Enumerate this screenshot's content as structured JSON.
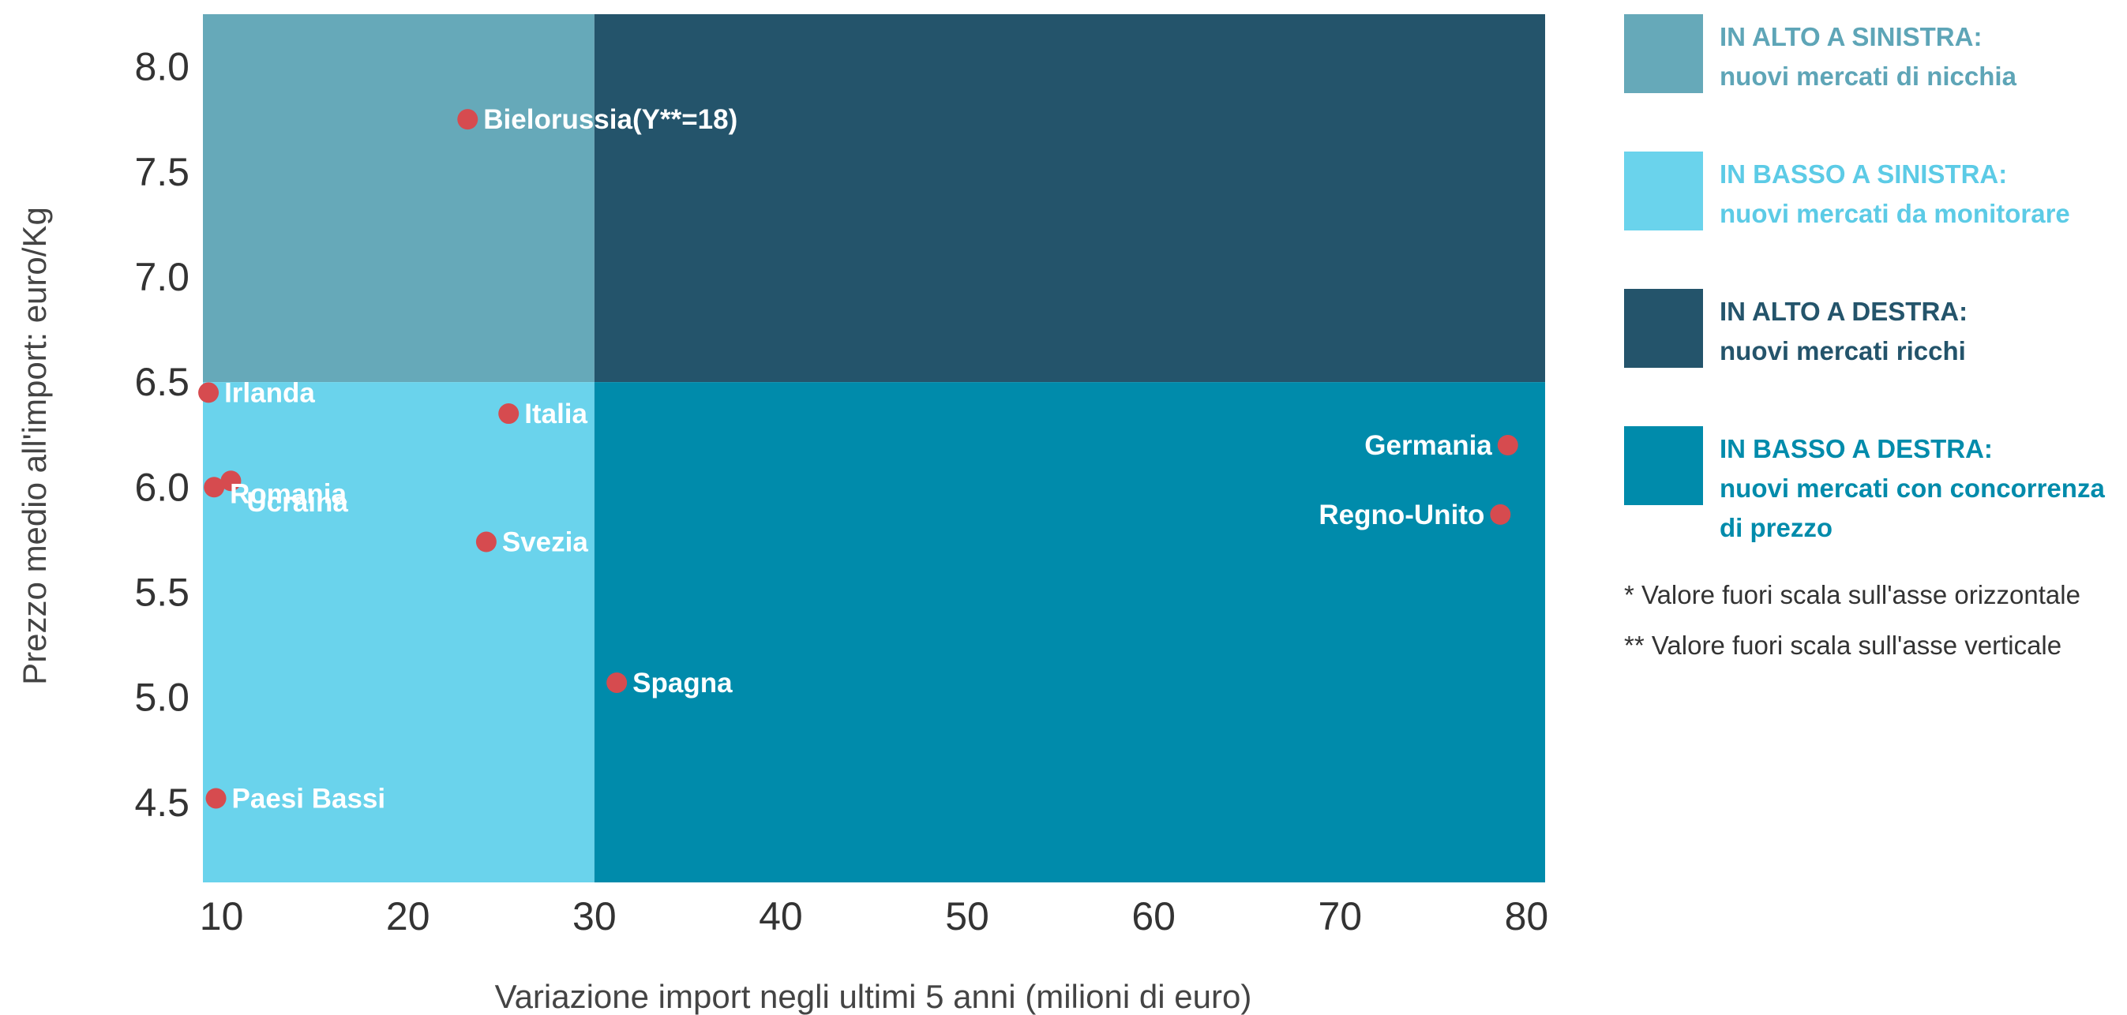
{
  "chart_data": {
    "type": "scatter",
    "title": "",
    "xlabel": "Variazione import negli ultimi 5 anni (milioni di euro)",
    "ylabel": "Prezzo medio all'import: euro/Kg",
    "xlim": [
      9,
      81
    ],
    "ylim": [
      4.12,
      8.25
    ],
    "x_ticks": [
      "10",
      "20",
      "30",
      "40",
      "50",
      "60",
      "70",
      "80"
    ],
    "x_tick_values": [
      10,
      20,
      30,
      40,
      50,
      60,
      70,
      80
    ],
    "y_ticks": [
      "8.0",
      "7.5",
      "7.0",
      "6.5",
      "6.0",
      "5.5",
      "5.0",
      "4.5"
    ],
    "y_tick_values": [
      8.0,
      7.5,
      7.0,
      6.5,
      6.0,
      5.5,
      5.0,
      4.5
    ],
    "x_divider": 30,
    "y_divider": 6.5,
    "grid": false,
    "legend_position": "right",
    "quadrants": [
      {
        "id": "top-left",
        "x_range": [
          9,
          30
        ],
        "y_range": [
          6.5,
          8.25
        ],
        "color": "#66a9b9"
      },
      {
        "id": "top-right",
        "x_range": [
          30,
          81
        ],
        "y_range": [
          6.5,
          8.25
        ],
        "color": "#24546b"
      },
      {
        "id": "bottom-left",
        "x_range": [
          9,
          30
        ],
        "y_range": [
          4.12,
          6.5
        ],
        "color": "#6ad3ec"
      },
      {
        "id": "bottom-right",
        "x_range": [
          30,
          81
        ],
        "y_range": [
          4.12,
          6.5
        ],
        "color": "#008bab"
      }
    ],
    "points": [
      {
        "label": "Bielorussia(Y**=18)",
        "x": 23.2,
        "y": 7.75,
        "label_side": "right"
      },
      {
        "label": "Irlanda",
        "x": 9.3,
        "y": 6.45,
        "label_side": "right"
      },
      {
        "label": "Italia",
        "x": 25.4,
        "y": 6.35,
        "label_side": "right"
      },
      {
        "label": "Ucraina",
        "x": 10.5,
        "y": 6.03,
        "label_side": "right",
        "label_dy": -0.1
      },
      {
        "label": "Romania",
        "x": 9.6,
        "y": 6.0,
        "label_side": "right",
        "label_dy": -0.03
      },
      {
        "label": "Svezia",
        "x": 24.2,
        "y": 5.74,
        "label_side": "right"
      },
      {
        "label": "Spagna",
        "x": 31.2,
        "y": 5.07,
        "label_side": "right"
      },
      {
        "label": "Paesi Bassi",
        "x": 9.7,
        "y": 4.52,
        "label_side": "right"
      },
      {
        "label": "Germania",
        "x": 79.0,
        "y": 6.2,
        "label_side": "left"
      },
      {
        "label": "Regno-Unito",
        "x": 78.6,
        "y": 5.87,
        "label_side": "left"
      }
    ],
    "point_color": "#d64b4f",
    "label_color": "#ffffff"
  },
  "legend": {
    "items": [
      {
        "title": "IN ALTO A SINISTRA:",
        "subtitle": "nuovi mercati di nicchia",
        "color": "#66a9b9",
        "text_color": "#5ea5b7"
      },
      {
        "title": "IN BASSO A SINISTRA:",
        "subtitle": "nuovi mercati da monitorare",
        "color": "#6ad3ec",
        "text_color": "#5ccbe6"
      },
      {
        "title": "IN ALTO A DESTRA:",
        "subtitle": "nuovi mercati ricchi",
        "color": "#24546b",
        "text_color": "#24546b"
      },
      {
        "title": "IN BASSO A DESTRA:",
        "subtitle": "nuovi mercati con concorrenza di prezzo",
        "color": "#008bab",
        "text_color": "#008bab"
      }
    ]
  },
  "notes": {
    "note1": "* Valore fuori scala sull'asse orizzontale",
    "note2": "** Valore fuori scala sull'asse verticale"
  }
}
